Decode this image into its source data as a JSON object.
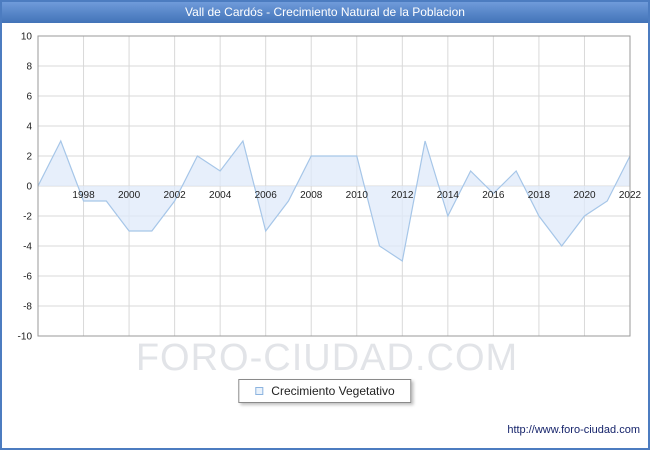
{
  "page": {
    "title": "Vall de Cardós - Crecimiento Natural de la Poblacion",
    "watermark": "FORO-CIUDAD.COM",
    "url": "http://www.foro-ciudad.com"
  },
  "legend": {
    "label": "Crecimiento Vegetativo"
  },
  "chart_data": {
    "type": "area",
    "title": "Vall de Cardós - Crecimiento Natural de la Poblacion",
    "x": [
      1996,
      1997,
      1998,
      1999,
      2000,
      2001,
      2002,
      2003,
      2004,
      2005,
      2006,
      2007,
      2008,
      2009,
      2010,
      2011,
      2012,
      2013,
      2014,
      2015,
      2016,
      2017,
      2018,
      2019,
      2020,
      2021,
      2022
    ],
    "values": [
      0,
      3,
      -1,
      -1,
      -3,
      -3,
      -1,
      2,
      1,
      3,
      -3,
      -1,
      2,
      2,
      2,
      -4,
      -5,
      3,
      -2,
      1,
      -0.5,
      1,
      -2,
      -4,
      -2,
      -1,
      2
    ],
    "series_name": "Crecimiento Vegetativo",
    "baseline": 0,
    "ylim": [
      -10,
      10
    ],
    "ytick_step": 2,
    "xticks": [
      1998,
      2000,
      2002,
      2004,
      2006,
      2008,
      2010,
      2012,
      2014,
      2016,
      2018,
      2020,
      2022
    ],
    "grid": true,
    "legend_position": "bottom",
    "colors": {
      "line": "#a6c6e8",
      "fill": "#dfeafa",
      "gridline": "#d9d9d9",
      "plot_border": "#9a9a9a",
      "tick_text": "#222222"
    }
  }
}
